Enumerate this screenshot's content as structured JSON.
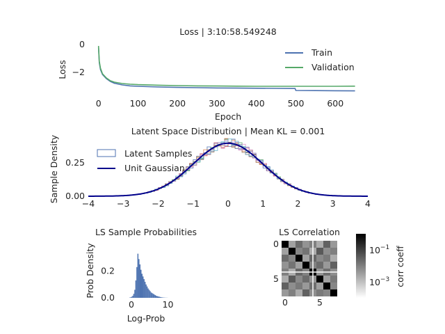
{
  "colors": {
    "train": "#4c72b0",
    "validation": "#55a868",
    "gaussian": "#00008b",
    "hist_fill": "#4c72b0",
    "text": "#222222"
  },
  "chart_data": [
    {
      "type": "line",
      "title": "Loss | 3:10:58.549248",
      "xlabel": "Epoch",
      "ylabel": "Loss",
      "xlim": [
        -10,
        670
      ],
      "ylim": [
        -3.8,
        0.4
      ],
      "xticks": [
        0,
        100,
        200,
        300,
        400,
        500,
        600
      ],
      "yticks": [
        0,
        -2
      ],
      "ytick_labels": [
        "0",
        "−2"
      ],
      "grid": false,
      "legend": "top-right",
      "series": [
        {
          "name": "Train",
          "x": [
            0,
            2,
            5,
            10,
            20,
            30,
            40,
            60,
            80,
            100,
            150,
            200,
            250,
            300,
            350,
            400,
            450,
            498,
            500,
            550,
            600,
            650
          ],
          "y": [
            -0.2,
            -1.3,
            -1.8,
            -2.15,
            -2.45,
            -2.65,
            -2.78,
            -2.9,
            -2.97,
            -3.0,
            -3.05,
            -3.08,
            -3.1,
            -3.12,
            -3.13,
            -3.14,
            -3.15,
            -3.16,
            -3.3,
            -3.31,
            -3.32,
            -3.33
          ]
        },
        {
          "name": "Validation",
          "x": [
            0,
            2,
            5,
            10,
            20,
            30,
            40,
            60,
            80,
            100,
            150,
            200,
            250,
            300,
            350,
            400,
            450,
            500,
            550,
            600,
            650
          ],
          "y": [
            -0.1,
            -1.2,
            -1.7,
            -2.1,
            -2.4,
            -2.6,
            -2.7,
            -2.8,
            -2.85,
            -2.88,
            -2.92,
            -2.95,
            -2.97,
            -2.98,
            -2.99,
            -3.0,
            -3.0,
            -3.0,
            -3.0,
            -3.0,
            -2.99
          ]
        }
      ]
    },
    {
      "type": "line",
      "title": "Latent Space Distribution | Mean KL = 0.001",
      "xlabel": "",
      "ylabel": "Sample Density",
      "xlim": [
        -4,
        4
      ],
      "ylim": [
        0,
        0.45
      ],
      "xticks": [
        -4,
        -3,
        -2,
        -1,
        0,
        1,
        2,
        3,
        4
      ],
      "xtick_labels": [
        "−4",
        "−3",
        "−2",
        "−1",
        "0",
        "1",
        "2",
        "3",
        "4"
      ],
      "yticks": [
        0.0,
        0.25
      ],
      "ytick_labels": [
        "0.00",
        "0.25"
      ],
      "grid": false,
      "legend": "top-left",
      "latent_dims": 8,
      "bin_width": 0.1,
      "series": [
        {
          "name": "Latent Samples",
          "kind": "step-histogram"
        },
        {
          "name": "Unit Gaussian",
          "kind": "pdf",
          "mean": 0,
          "std": 1
        }
      ]
    },
    {
      "type": "bar",
      "title": "LS Sample Probabilities",
      "xlabel": "Log-Prob",
      "ylabel": "Prob Density",
      "xlim": [
        -4,
        12
      ],
      "ylim": [
        0,
        0.38
      ],
      "xticks": [
        0,
        10
      ],
      "yticks": [
        0.0,
        0.2
      ],
      "ytick_labels": [
        "0.0",
        "0.2"
      ],
      "bin_edges_start": -0.6,
      "bin_width": 0.28,
      "values": [
        0.002,
        0.004,
        0.008,
        0.015,
        0.03,
        0.06,
        0.13,
        0.23,
        0.33,
        0.29,
        0.25,
        0.21,
        0.18,
        0.16,
        0.14,
        0.12,
        0.1,
        0.085,
        0.07,
        0.06,
        0.05,
        0.04,
        0.035,
        0.03,
        0.025,
        0.02,
        0.015,
        0.012,
        0.01,
        0.008,
        0.006,
        0.004,
        0.003,
        0.002,
        0.0015,
        0.001,
        0.0008,
        0.0005
      ]
    },
    {
      "type": "heatmap",
      "title": "LS Correlation",
      "xticks": [
        0,
        5
      ],
      "yticks": [
        0,
        5
      ],
      "colorbar_label": "corr coeff",
      "colorbar_ticks": [
        "10^-1",
        "10^-3"
      ],
      "colorbar_scale": "log",
      "colorbar_range": [
        0.0001,
        1
      ],
      "matrix": [
        [
          1.0,
          0.003,
          0.02,
          0.005,
          0.01,
          0.002,
          0.03,
          0.004
        ],
        [
          0.003,
          1.0,
          0.008,
          0.015,
          0.002,
          0.04,
          0.006,
          0.01
        ],
        [
          0.02,
          0.008,
          1.0,
          0.003,
          0.025,
          0.007,
          0.012,
          0.002
        ],
        [
          0.005,
          0.015,
          0.003,
          1.0,
          0.009,
          0.02,
          0.004,
          0.03
        ],
        [
          0.01,
          0.002,
          0.025,
          0.009,
          1.0,
          0.005,
          0.018,
          0.006
        ],
        [
          0.002,
          0.04,
          0.007,
          0.02,
          0.005,
          1.0,
          0.003,
          0.012
        ],
        [
          0.03,
          0.006,
          0.012,
          0.004,
          0.018,
          0.003,
          1.0,
          0.008
        ],
        [
          0.004,
          0.01,
          0.002,
          0.03,
          0.006,
          0.012,
          0.008,
          1.0
        ]
      ]
    }
  ]
}
